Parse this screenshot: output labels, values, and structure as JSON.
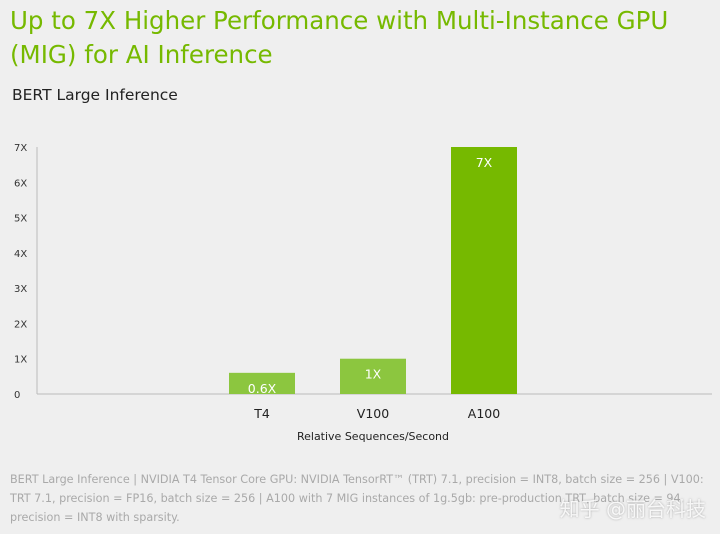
{
  "header": {
    "title": "Up to 7X Higher Performance with Multi-Instance GPU (MIG) for AI Inference",
    "subtitle": "BERT Large Inference"
  },
  "footnote": "BERT Large Inference | NVIDIA T4 Tensor Core GPU: NVIDIA TensorRT™ (TRT) 7.1, precision = INT8, batch size = 256 | V100: TRT 7.1, precision = FP16, batch size = 256 | A100 with 7 MIG instances of 1g.5gb: pre-production TRT, batch size = 94, precision = INT8 with sparsity.",
  "watermark": "知乎 @丽台科技",
  "colors": {
    "title": "#76b900",
    "bar_light": "#8cc63f",
    "bar_dark": "#76b900",
    "background": "#efefef"
  },
  "chart_data": {
    "type": "bar",
    "title": "",
    "xlabel": "Relative Sequences/Second",
    "ylabel": "",
    "categories": [
      "T4",
      "V100",
      "A100"
    ],
    "values": [
      0.6,
      1,
      7
    ],
    "data_labels": [
      "0.6X",
      "1X",
      "7X"
    ],
    "ylim": [
      0,
      7
    ],
    "yticks": [
      0,
      1,
      2,
      3,
      4,
      5,
      6,
      7
    ],
    "ytick_labels": [
      "0",
      "1X",
      "2X",
      "3X",
      "4X",
      "5X",
      "6X",
      "7X"
    ],
    "bar_colors": [
      "#8cc63f",
      "#8cc63f",
      "#76b900"
    ],
    "grid": false,
    "legend": "none"
  }
}
